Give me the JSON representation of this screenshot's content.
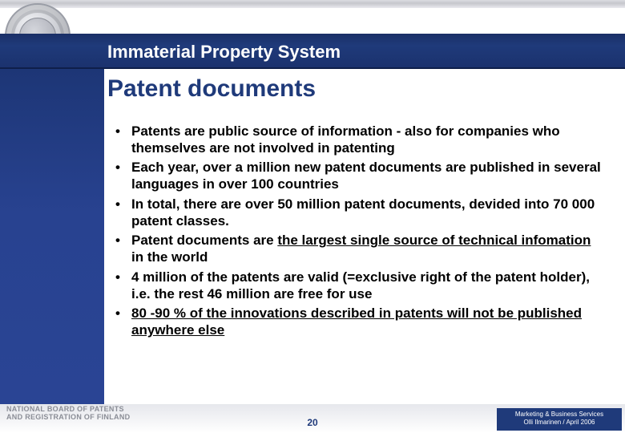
{
  "header": {
    "title": "Immaterial Property System"
  },
  "slide": {
    "title": "Patent documents",
    "bullets": [
      {
        "pre": "Patents are public source of information - also for companies who themselves are not involved in patenting",
        "u": "",
        "post": ""
      },
      {
        "pre": "Each year, over a million new patent documents are published in several languages in over 100 countries",
        "u": "",
        "post": ""
      },
      {
        "pre": "In total, there are over 50 million patent documents, devided into 70 000 patent classes.",
        "u": "",
        "post": ""
      },
      {
        "pre": "Patent documents are ",
        "u": "the largest single source of technical infomation",
        "post": " in the world"
      },
      {
        "pre": "4 million of the patents are valid (=exclusive right of the patent holder), i.e. the rest 46 million are free for use",
        "u": "",
        "post": ""
      },
      {
        "pre": "",
        "u": "80 -90 % of the innovations described in patents will not be published anywhere else",
        "post": ""
      }
    ]
  },
  "footer": {
    "page": "20",
    "org_line1": "NATIONAL BOARD OF PATENTS",
    "org_line2": "AND REGISTRATION OF FINLAND",
    "credit_line1": "Marketing & Business Services",
    "credit_line2": "Olli Ilmarinen / April 2006"
  },
  "colors": {
    "brand_blue": "#1f3a7a",
    "left_blue": "#284290",
    "text": "#000000",
    "seal_gray": "#b6b8c0"
  }
}
